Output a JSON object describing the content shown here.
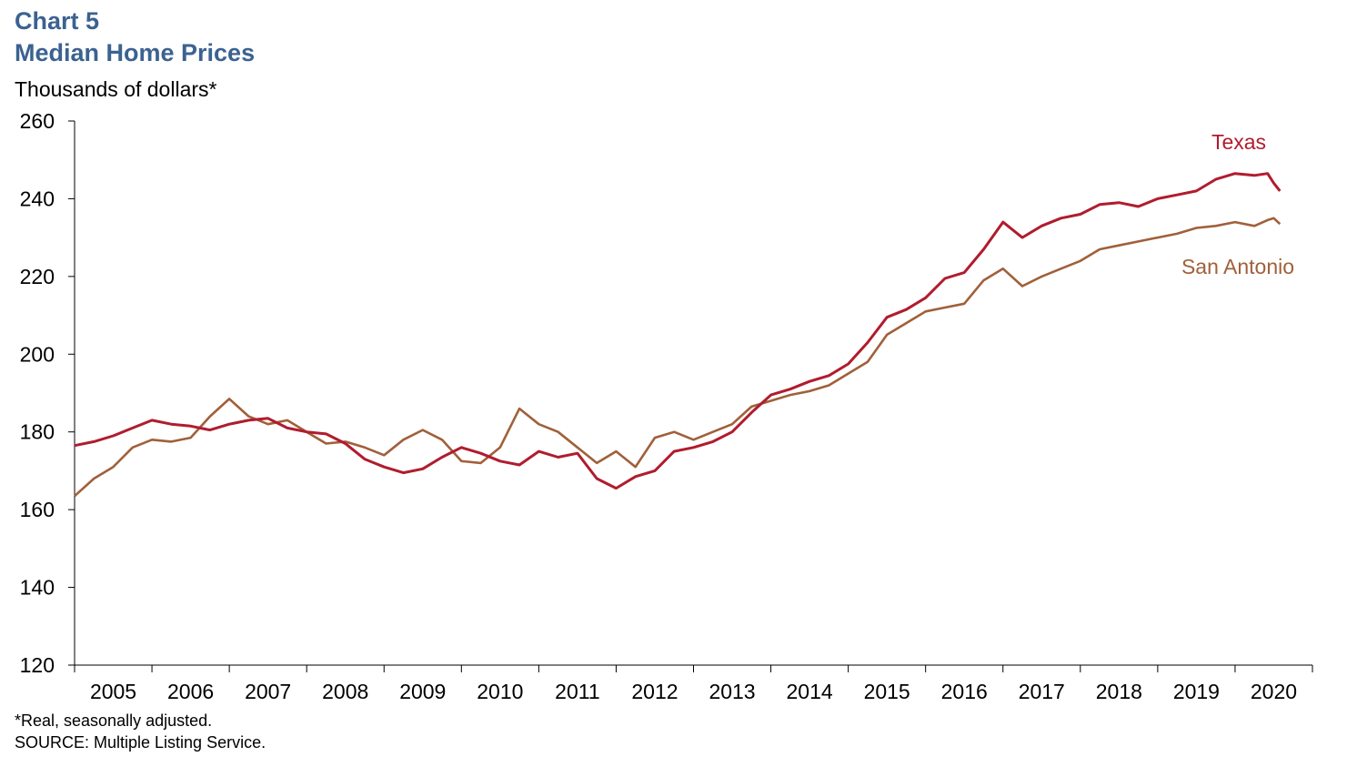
{
  "header": {
    "chart_number": "Chart 5",
    "title": "Median Home Prices",
    "ylabel": "Thousands of dollars*"
  },
  "footer": {
    "note": "*Real, seasonally adjusted.",
    "source": "SOURCE: Multiple Listing Service."
  },
  "chart_data": {
    "type": "line",
    "title": "Median Home Prices",
    "ylabel": "Thousands of dollars*",
    "xlabel": "",
    "ylim": [
      120,
      260
    ],
    "yticks": [
      120,
      140,
      160,
      180,
      200,
      220,
      240,
      260
    ],
    "xlim": [
      2004.5,
      2020.5
    ],
    "xticks": [
      "2005",
      "2006",
      "2007",
      "2008",
      "2009",
      "2010",
      "2011",
      "2012",
      "2013",
      "2014",
      "2015",
      "2016",
      "2017",
      "2018",
      "2019",
      "2020"
    ],
    "grid": false,
    "colors": {
      "Texas": "#b01c2e",
      "San Antonio": "#a0603a"
    },
    "series": [
      {
        "name": "Texas",
        "x": [
          2004.5,
          2004.75,
          2005.0,
          2005.25,
          2005.5,
          2005.75,
          2006.0,
          2006.25,
          2006.5,
          2006.75,
          2007.0,
          2007.25,
          2007.5,
          2007.75,
          2008.0,
          2008.25,
          2008.5,
          2008.75,
          2009.0,
          2009.25,
          2009.5,
          2009.75,
          2010.0,
          2010.25,
          2010.5,
          2010.75,
          2011.0,
          2011.25,
          2011.5,
          2011.75,
          2012.0,
          2012.25,
          2012.5,
          2012.75,
          2013.0,
          2013.25,
          2013.5,
          2013.75,
          2014.0,
          2014.25,
          2014.5,
          2014.75,
          2015.0,
          2015.25,
          2015.5,
          2015.75,
          2016.0,
          2016.25,
          2016.5,
          2016.75,
          2017.0,
          2017.25,
          2017.5,
          2017.75,
          2018.0,
          2018.25,
          2018.5,
          2018.75,
          2019.0,
          2019.25,
          2019.5,
          2019.75,
          2019.92,
          2020.0,
          2020.08
        ],
        "values": [
          176.5,
          177.5,
          179,
          181,
          183,
          182,
          181.5,
          180.5,
          182,
          183,
          183.5,
          181,
          180,
          179.5,
          177,
          173,
          171,
          169.5,
          170.5,
          173.5,
          176,
          174.5,
          172.5,
          171.5,
          175,
          173.5,
          174.5,
          168,
          165.5,
          168.5,
          170,
          175,
          176,
          177.5,
          180,
          185,
          189.5,
          191,
          193,
          194.5,
          197.5,
          203,
          209.5,
          211.5,
          214.5,
          219.5,
          221,
          227,
          234,
          230,
          233,
          235,
          236,
          238.5,
          239,
          238,
          240,
          241,
          242,
          245,
          246.5,
          246,
          246.5,
          244,
          242
        ]
      },
      {
        "name": "San Antonio",
        "x": [
          2004.5,
          2004.75,
          2005.0,
          2005.25,
          2005.5,
          2005.75,
          2006.0,
          2006.25,
          2006.5,
          2006.75,
          2007.0,
          2007.25,
          2007.5,
          2007.75,
          2008.0,
          2008.25,
          2008.5,
          2008.75,
          2009.0,
          2009.25,
          2009.5,
          2009.75,
          2010.0,
          2010.25,
          2010.5,
          2010.75,
          2011.0,
          2011.25,
          2011.5,
          2011.75,
          2012.0,
          2012.25,
          2012.5,
          2012.75,
          2013.0,
          2013.25,
          2013.5,
          2013.75,
          2014.0,
          2014.25,
          2014.5,
          2014.75,
          2015.0,
          2015.25,
          2015.5,
          2015.75,
          2016.0,
          2016.25,
          2016.5,
          2016.75,
          2017.0,
          2017.25,
          2017.5,
          2017.75,
          2018.0,
          2018.25,
          2018.5,
          2018.75,
          2019.0,
          2019.25,
          2019.5,
          2019.75,
          2019.92,
          2020.0,
          2020.08
        ],
        "values": [
          163.5,
          168,
          171,
          176,
          178,
          177.5,
          178.5,
          184,
          188.5,
          184,
          182,
          183,
          180,
          177,
          177.5,
          176,
          174,
          178,
          180.5,
          178,
          172.5,
          172,
          176,
          186,
          182,
          180,
          176,
          172,
          175,
          171,
          178.5,
          180,
          178,
          180,
          182,
          186.5,
          188,
          189.5,
          190.5,
          192,
          195,
          198,
          205,
          208,
          211,
          212,
          213,
          219,
          222,
          217.5,
          220,
          222,
          224,
          227,
          228,
          229,
          230,
          231,
          232.5,
          233,
          234,
          233,
          234.5,
          235,
          233.5
        ]
      }
    ]
  }
}
